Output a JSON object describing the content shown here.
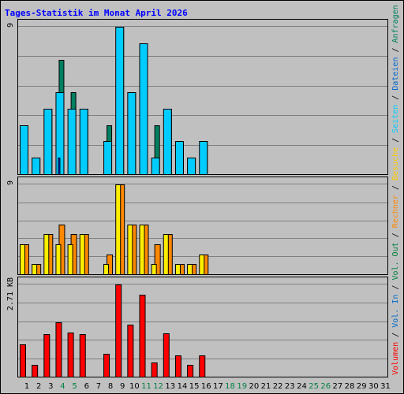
{
  "title": "Tages-Statistik im Monat April 2026",
  "colors": {
    "background": "#c0c0c0",
    "plot": "#c0c0c0",
    "grid": "#808080",
    "title": "#0000ff",
    "weekday": "#000000",
    "weekend": "#008040",
    "anfragen": "#008060",
    "dateien": "#00ccff",
    "seiten": "#0040ff",
    "besuche": "#ffee00",
    "rechner": "#ff8800",
    "volumen": "#ff0000"
  },
  "legend_right": [
    {
      "text": "Anfragen",
      "color": "#008060"
    },
    {
      "text": "/",
      "color": "#000000"
    },
    {
      "text": "Dateien",
      "color": "#0066cc"
    },
    {
      "text": "/",
      "color": "#000000"
    },
    {
      "text": "Seiten",
      "color": "#00ccff"
    },
    {
      "text": "/",
      "color": "#000000"
    },
    {
      "text": "Besuche",
      "color": "#ffcc00"
    },
    {
      "text": "/",
      "color": "#000000"
    },
    {
      "text": "Rechner",
      "color": "#ff8800"
    },
    {
      "text": "/",
      "color": "#000000"
    },
    {
      "text": "Vol. Out",
      "color": "#008040"
    },
    {
      "text": "/",
      "color": "#000000"
    },
    {
      "text": "Vol. In",
      "color": "#0066cc"
    },
    {
      "text": "/",
      "color": "#000000"
    },
    {
      "text": "Volumen",
      "color": "#ff0000"
    }
  ],
  "chart_data": [
    {
      "type": "bar",
      "panel": "hits",
      "x": [
        1,
        2,
        3,
        4,
        5,
        6,
        7,
        8,
        9,
        10,
        11,
        12,
        13,
        14,
        15,
        16,
        17,
        18,
        19,
        20,
        21,
        22,
        23,
        24,
        25,
        26,
        27,
        28,
        29,
        30,
        31
      ],
      "x_weekend": [
        4,
        5,
        11,
        12,
        18,
        19,
        25,
        26
      ],
      "ymax_label": "9",
      "ylim": [
        0,
        9
      ],
      "series": [
        {
          "name": "Anfragen",
          "values": [
            3,
            1,
            4,
            7,
            5,
            4,
            0,
            3,
            9,
            5,
            8,
            3,
            4,
            2,
            1,
            2,
            0,
            0,
            0,
            0,
            0,
            0,
            0,
            0,
            0,
            0,
            0,
            0,
            0,
            0,
            0
          ]
        },
        {
          "name": "Dateien",
          "values": [
            3,
            1,
            4,
            5,
            4,
            4,
            0,
            2,
            9,
            5,
            8,
            1,
            4,
            2,
            1,
            2,
            0,
            0,
            0,
            0,
            0,
            0,
            0,
            0,
            0,
            0,
            0,
            0,
            0,
            0,
            0
          ]
        },
        {
          "name": "Seiten",
          "values": [
            0,
            0,
            0,
            1,
            0,
            0,
            0,
            0,
            0,
            0,
            0,
            0,
            0,
            0,
            0,
            0,
            0,
            0,
            0,
            0,
            0,
            0,
            0,
            0,
            0,
            0,
            0,
            0,
            0,
            0,
            0
          ]
        }
      ]
    },
    {
      "type": "bar",
      "panel": "visits",
      "ymax_label": "9",
      "ylim": [
        0,
        9
      ],
      "series": [
        {
          "name": "Besuche",
          "values": [
            3,
            1,
            4,
            3,
            3,
            4,
            0,
            1,
            9,
            5,
            5,
            1,
            4,
            1,
            1,
            2,
            0,
            0,
            0,
            0,
            0,
            0,
            0,
            0,
            0,
            0,
            0,
            0,
            0,
            0,
            0
          ]
        },
        {
          "name": "Rechner",
          "values": [
            3,
            1,
            4,
            5,
            4,
            4,
            0,
            2,
            9,
            5,
            5,
            3,
            4,
            1,
            1,
            2,
            0,
            0,
            0,
            0,
            0,
            0,
            0,
            0,
            0,
            0,
            0,
            0,
            0,
            0,
            0
          ]
        }
      ]
    },
    {
      "type": "bar",
      "panel": "volume",
      "ymax_label": "2.71 KB",
      "ylim": [
        0,
        2.71
      ],
      "series": [
        {
          "name": "Volumen",
          "values": [
            0.95,
            0.35,
            1.25,
            1.6,
            1.3,
            1.25,
            0,
            0.68,
            2.71,
            1.52,
            2.42,
            0.42,
            1.28,
            0.62,
            0.35,
            0.62,
            0,
            0,
            0,
            0,
            0,
            0,
            0,
            0,
            0,
            0,
            0,
            0,
            0,
            0,
            0
          ]
        }
      ]
    }
  ]
}
